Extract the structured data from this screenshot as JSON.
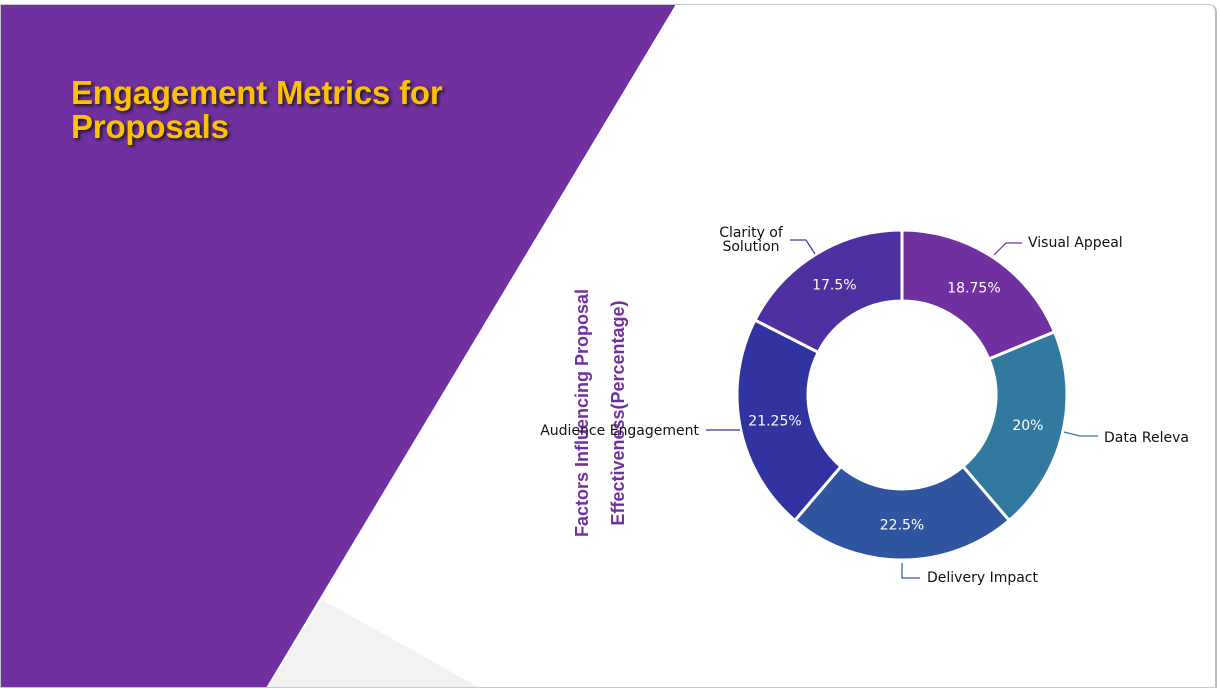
{
  "page": {
    "title": "Engagement Metrics for Proposals"
  },
  "colors": {
    "accent_purple": "#7030A0",
    "title_gold": "#FFC000",
    "corner_gray": "#f2f2f2"
  },
  "chart_data": {
    "type": "pie",
    "style": "donut",
    "title": "Factors Influencing Proposal Effectiveness(Percentage)",
    "title_lines": [
      "Factors Influencing Proposal",
      "Effectiveness(Percentage)"
    ],
    "categories": [
      "Visual Appeal",
      "Data Relevance",
      "Delivery Impact",
      "Audience Engagement",
      "Clarity of Solution"
    ],
    "values": [
      18.75,
      20,
      22.5,
      21.25,
      17.5
    ],
    "value_labels": [
      "18.75%",
      "20%",
      "22.5%",
      "21.25%",
      "17.5%"
    ],
    "category_label_lines": [
      [
        "Visual Appeal"
      ],
      [
        "Data Relevance"
      ],
      [
        "Delivery Impact"
      ],
      [
        "Audience Engagement"
      ],
      [
        "Clarity of",
        "Solution"
      ]
    ],
    "colors": [
      "#7030A0",
      "#31799F",
      "#2F55A0",
      "#3133A0",
      "#4E30A0"
    ],
    "legend": "none"
  }
}
